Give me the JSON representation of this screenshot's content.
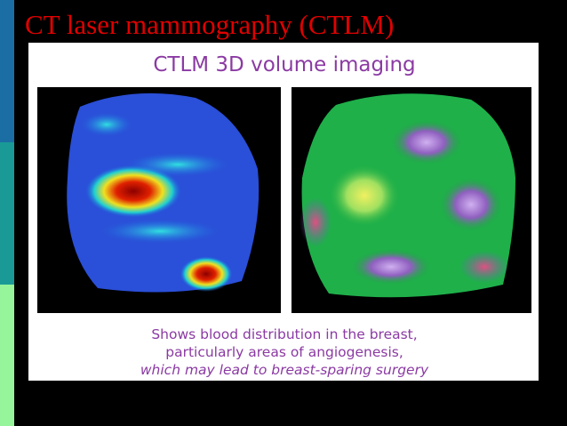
{
  "slide": {
    "title": "CT laser mammography (CTLM)",
    "figure": {
      "title": "CTLM 3D volume imaging",
      "caption": [
        "Shows blood distribution in the breast,",
        "particularly areas of angiogenesis,",
        "which may lead to breast-sparing surgery"
      ]
    }
  }
}
